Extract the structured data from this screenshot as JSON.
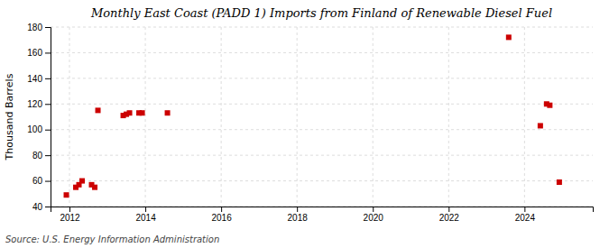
{
  "chart_data": {
    "type": "scatter",
    "title": "Monthly East Coast (PADD 1) Imports from Finland of Renewable Diesel Fuel",
    "ylabel": "Thousand Barrels",
    "source": "Source: U.S. Energy Information Administration",
    "color": "#cc0000",
    "marker": "square",
    "grid": true,
    "xlim": [
      2011.5,
      2025.8
    ],
    "ylim": [
      40,
      180
    ],
    "xticks": [
      2012,
      2014,
      2016,
      2018,
      2020,
      2022,
      2024
    ],
    "yticks": [
      40,
      60,
      80,
      100,
      120,
      140,
      160,
      180
    ],
    "x": [
      2011.917,
      2012.167,
      2012.25,
      2012.333,
      2012.583,
      2012.667,
      2012.75,
      2013.417,
      2013.5,
      2013.583,
      2013.833,
      2013.917,
      2014.583,
      2023.583,
      2024.417,
      2024.583,
      2024.667,
      2024.917
    ],
    "values": [
      49,
      55,
      57,
      60,
      57,
      55,
      115,
      111,
      112,
      113,
      113,
      113,
      113,
      172,
      103,
      120,
      119,
      59
    ]
  }
}
